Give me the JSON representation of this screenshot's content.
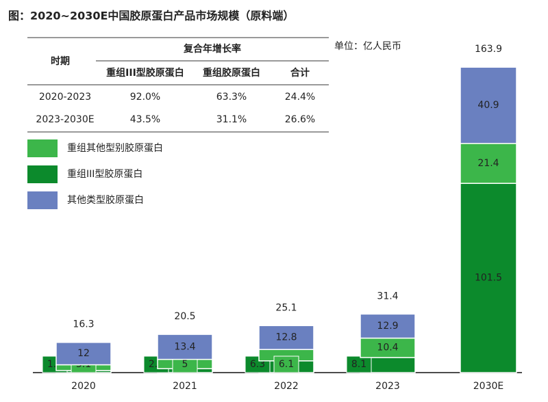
{
  "title": "图：2020~2030E中国胶原蛋白产品市场规模（原料端）",
  "unit": "单位：亿人民币",
  "table": {
    "header": {
      "period": "时期",
      "group": "复合年增长率",
      "columns": [
        "重组III型胶原蛋白",
        "重组胶原蛋白",
        "合计"
      ]
    },
    "rows": [
      [
        "2020-2023",
        "92.0%",
        "63.3%",
        "24.4%"
      ],
      [
        "2023-2030E",
        "43.5%",
        "31.1%",
        "26.6%"
      ]
    ]
  },
  "chart_data": {
    "type": "stacked_bar",
    "categories": [
      "2020",
      "2021",
      "2022",
      "2023",
      "2030E"
    ],
    "series": [
      {
        "name": "重组III型胶原蛋白",
        "color": "#0c8a2c",
        "values": [
          1.1,
          2.1,
          6.3,
          8.1,
          101.5
        ]
      },
      {
        "name": "重组其他型别胶原蛋白",
        "color": "#3cb64a",
        "values": [
          3.1,
          5.0,
          6.1,
          10.4,
          21.4
        ]
      },
      {
        "name": "其他类型胶原蛋白",
        "color": "#6a80c0",
        "values": [
          12.0,
          13.4,
          12.8,
          12.9,
          40.9
        ]
      }
    ],
    "totals": [
      16.3,
      20.5,
      25.1,
      31.4,
      163.9
    ],
    "legend_order": [
      1,
      0,
      2
    ]
  }
}
